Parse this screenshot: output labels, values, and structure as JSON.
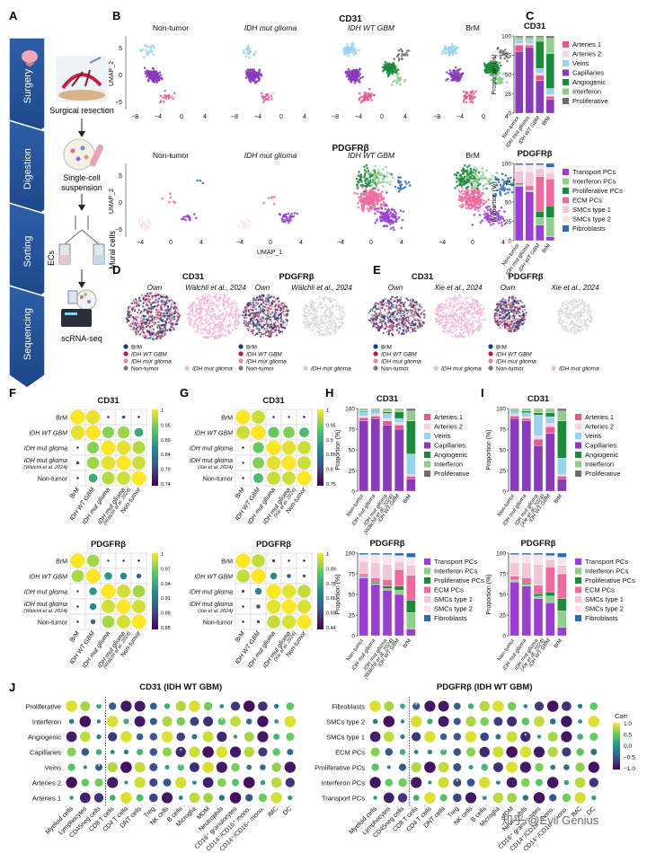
{
  "panels": {
    "A": "A",
    "B": "B",
    "C": "C",
    "D": "D",
    "E": "E",
    "F": "F",
    "G": "G",
    "H": "H",
    "I": "I",
    "J": "J"
  },
  "workflow": {
    "steps": [
      "Surgery",
      "Digestion",
      "Sorting",
      "Sequencing"
    ],
    "captions": [
      "Surgical resection",
      "Single-cell\nsuspension",
      "",
      "scRNA-seq"
    ],
    "sorting_labels": {
      "ecs": "ECs",
      "mural": "Mural cells"
    }
  },
  "umap": {
    "cd31_title": "CD31",
    "pdgfrb_title": "PDGFRβ",
    "groups": [
      "Non-tumor",
      "IDH mut glioma",
      "IDH WT GBM",
      "BrM"
    ],
    "x_label": "UMAP_1",
    "y_label": "UMAP_2",
    "cd31_xticks": [
      "−8",
      "−4",
      "0",
      "4"
    ],
    "cd31_yticks": [
      "5",
      "0",
      "−5"
    ],
    "pdgfrb_xticks": [
      "−4",
      "0",
      "4"
    ],
    "pdgfrb_yticks": [
      "5",
      "0",
      "−5"
    ]
  },
  "legend_C_cd31": [
    "Arteries 1",
    "Arteries 2",
    "Veins",
    "Capillaries",
    "Angiogenic",
    "Interferon",
    "Proliferative"
  ],
  "legend_C_pdgfrb": [
    "Transport PCs",
    "Interferon PCs",
    "Proliferative PCs",
    "ECM PCs",
    "SMCs type 1",
    "SMCs type 2",
    "Fibroblasts"
  ],
  "colors": {
    "Arteries 1": "#e75a8e",
    "Arteries 2": "#fad3e2",
    "Veins": "#9ad3ee",
    "Capillaries": "#8a3bb9",
    "Angiogenic": "#1b8a3b",
    "Interferon": "#8fce8c",
    "Proliferative": "#6e6e6e",
    "Transport PCs": "#9a3fd0",
    "Interferon PCs": "#8fce8c",
    "Proliferative PCs": "#1b8a3b",
    "ECM PCs": "#ee6b9f",
    "SMCs type 1": "#f2c6d6",
    "SMCs type 2": "#fbe4ec",
    "Fibroblasts": "#2b6cb0",
    "BrM": "#1a3a7a",
    "IDH WT GBM": "#b01e4f",
    "IDH mut glioma": "#e887b2",
    "Non-tumor": "#777777"
  },
  "bar_groups_C": [
    "Non-tumor",
    "IDH mut glioma",
    "IDH WT GBM",
    "BrM"
  ],
  "bar_groups_H": [
    "Non-tumor",
    "IDH mut glioma",
    "IDH mut glioma\n(Wälchli et al. 2024)",
    "IDH WT GBM",
    "BrM"
  ],
  "bar_groups_I": [
    "Non-tumor",
    "IDH mut glioma",
    "IDH mut glioma\n(Xie et al. 2024)",
    "IDH WT GBM",
    "BrM"
  ],
  "proportion_label": "Proportion (%)",
  "bar_yticks": [
    "0",
    "25",
    "50",
    "75",
    "100"
  ],
  "chart_data": [
    {
      "type": "bar",
      "title": "CD31",
      "panel": "C",
      "categories": [
        "Non-tumor",
        "IDH mut glioma",
        "IDH WT GBM",
        "BrM"
      ],
      "ylabel": "Proportion (%)",
      "ylim": [
        0,
        100
      ],
      "series": [
        {
          "name": "Capillaries",
          "values": [
            80,
            85,
            42,
            18
          ]
        },
        {
          "name": "Arteries 1",
          "values": [
            8,
            3,
            7,
            4
          ]
        },
        {
          "name": "Arteries 2",
          "values": [
            2,
            2,
            3,
            2
          ]
        },
        {
          "name": "Veins",
          "values": [
            5,
            5,
            6,
            8
          ]
        },
        {
          "name": "Angiogenic",
          "values": [
            0,
            0,
            35,
            45
          ]
        },
        {
          "name": "Interferon",
          "values": [
            3,
            3,
            5,
            20
          ]
        },
        {
          "name": "Proliferative",
          "values": [
            2,
            2,
            2,
            3
          ]
        }
      ]
    },
    {
      "type": "bar",
      "title": "PDGFRβ",
      "panel": "C",
      "categories": [
        "Non-tumor",
        "IDH mut glioma",
        "IDH WT GBM",
        "BrM"
      ],
      "ylabel": "Proportion (%)",
      "ylim": [
        0,
        100
      ],
      "series": [
        {
          "name": "Transport PCs",
          "values": [
            70,
            63,
            20,
            5
          ]
        },
        {
          "name": "Interferon PCs",
          "values": [
            2,
            2,
            10,
            25
          ]
        },
        {
          "name": "Proliferative PCs",
          "values": [
            1,
            1,
            8,
            15
          ]
        },
        {
          "name": "ECM PCs",
          "values": [
            2,
            5,
            45,
            35
          ]
        },
        {
          "name": "SMCs type 1",
          "values": [
            15,
            18,
            10,
            8
          ]
        },
        {
          "name": "SMCs type 2",
          "values": [
            8,
            9,
            5,
            7
          ]
        },
        {
          "name": "Fibroblasts",
          "values": [
            2,
            2,
            2,
            5
          ]
        }
      ]
    },
    {
      "type": "bar",
      "title": "CD31",
      "panel": "H",
      "categories": [
        "Non-tumor",
        "IDH mut glioma",
        "IDH mut glioma (Wälchli et al. 2024)",
        "IDH WT GBM",
        "BrM"
      ],
      "ylabel": "Proportion (%)",
      "ylim": [
        0,
        100
      ],
      "series": [
        {
          "name": "Capillaries",
          "values": [
            85,
            88,
            80,
            75,
            15
          ]
        },
        {
          "name": "Arteries 1",
          "values": [
            4,
            3,
            5,
            5,
            3
          ]
        },
        {
          "name": "Arteries 2",
          "values": [
            2,
            2,
            3,
            3,
            2
          ]
        },
        {
          "name": "Veins",
          "values": [
            5,
            4,
            6,
            5,
            25
          ]
        },
        {
          "name": "Angiogenic",
          "values": [
            1,
            1,
            2,
            8,
            40
          ]
        },
        {
          "name": "Interferon",
          "values": [
            2,
            1,
            3,
            3,
            12
          ]
        },
        {
          "name": "Proliferative",
          "values": [
            1,
            1,
            1,
            1,
            3
          ]
        }
      ]
    },
    {
      "type": "bar",
      "title": "PDGFRβ",
      "panel": "H",
      "categories": [
        "Non-tumor",
        "IDH mut glioma",
        "IDH mut glioma (Wälchli et al. 2024)",
        "IDH WT GBM",
        "BrM"
      ],
      "ylabel": "Proportion (%)",
      "ylim": [
        0,
        100
      ],
      "series": [
        {
          "name": "Transport PCs",
          "values": [
            70,
            62,
            55,
            50,
            8
          ]
        },
        {
          "name": "Interferon PCs",
          "values": [
            1,
            1,
            2,
            5,
            20
          ]
        },
        {
          "name": "Proliferative PCs",
          "values": [
            1,
            2,
            3,
            5,
            15
          ]
        },
        {
          "name": "ECM PCs",
          "values": [
            3,
            5,
            8,
            20,
            30
          ]
        },
        {
          "name": "SMCs type 1",
          "values": [
            15,
            18,
            18,
            10,
            12
          ]
        },
        {
          "name": "SMCs type 2",
          "values": [
            8,
            10,
            12,
            7,
            10
          ]
        },
        {
          "name": "Fibroblasts",
          "values": [
            2,
            2,
            2,
            3,
            5
          ]
        }
      ]
    },
    {
      "type": "bar",
      "title": "CD31",
      "panel": "I",
      "categories": [
        "Non-tumor",
        "IDH mut glioma",
        "IDH mut glioma (Xie et al. 2024)",
        "IDH WT GBM",
        "BrM"
      ],
      "ylabel": "Proportion (%)",
      "ylim": [
        0,
        100
      ],
      "series": [
        {
          "name": "Capillaries",
          "values": [
            88,
            85,
            55,
            70,
            15
          ]
        },
        {
          "name": "Arteries 1",
          "values": [
            3,
            3,
            8,
            8,
            3
          ]
        },
        {
          "name": "Arteries 2",
          "values": [
            2,
            2,
            4,
            4,
            2
          ]
        },
        {
          "name": "Veins",
          "values": [
            4,
            5,
            25,
            8,
            20
          ]
        },
        {
          "name": "Angiogenic",
          "values": [
            1,
            2,
            3,
            5,
            45
          ]
        },
        {
          "name": "Interferon",
          "values": [
            1,
            2,
            4,
            4,
            12
          ]
        },
        {
          "name": "Proliferative",
          "values": [
            1,
            1,
            1,
            1,
            3
          ]
        }
      ]
    },
    {
      "type": "bar",
      "title": "PDGFRβ",
      "panel": "I",
      "categories": [
        "Non-tumor",
        "IDH mut glioma",
        "IDH mut glioma (Xie et al. 2024)",
        "IDH WT GBM",
        "BrM"
      ],
      "ylabel": "Proportion (%)",
      "ylim": [
        0,
        100
      ],
      "series": [
        {
          "name": "Transport PCs",
          "values": [
            65,
            60,
            45,
            40,
            10
          ]
        },
        {
          "name": "Interferon PCs",
          "values": [
            2,
            2,
            3,
            8,
            20
          ]
        },
        {
          "name": "Proliferative PCs",
          "values": [
            1,
            2,
            3,
            5,
            15
          ]
        },
        {
          "name": "ECM PCs",
          "values": [
            4,
            6,
            10,
            30,
            30
          ]
        },
        {
          "name": "SMCs type 1",
          "values": [
            16,
            18,
            25,
            9,
            10
          ]
        },
        {
          "name": "SMCs type 2",
          "values": [
            10,
            10,
            12,
            5,
            10
          ]
        },
        {
          "name": "Fibroblasts",
          "values": [
            2,
            2,
            2,
            3,
            5
          ]
        }
      ]
    }
  ],
  "corr_F_cd31": {
    "title": "CD31",
    "rows": [
      "BrM",
      "IDH WT GBM",
      "IDH mut glioma",
      "IDH mut glioma\n(Wälchli et al. 2024)",
      "Non-tumor"
    ],
    "cbar_ticks": [
      "1",
      "0.95",
      "0.89",
      "0.84",
      "0.79",
      "0.74"
    ]
  },
  "corr_G_cd31": {
    "title": "CD31",
    "rows": [
      "BrM",
      "IDH WT GBM",
      "IDH mut glioma",
      "IDH mut glioma\n(Xie et al. 2024)",
      "Non-tumor"
    ],
    "cbar_ticks": [
      "1",
      "0.95",
      "0.9",
      "0.85",
      "0.8",
      "0.75"
    ]
  },
  "corr_F_pdgfrb": {
    "title": "PDGFRβ",
    "rows": [
      "BrM",
      "IDH WT GBM",
      "IDH mut glioma",
      "IDH mut glioma\n(Wälchli et al. 2024)",
      "Non-tumor"
    ],
    "cbar_ticks": [
      "1",
      "0.97",
      "0.94",
      "0.91",
      "0.88",
      "0.85"
    ]
  },
  "corr_G_pdgfrb": {
    "title": "PDGFRβ",
    "rows": [
      "BrM",
      "IDH WT GBM",
      "IDH mut glioma",
      "IDH mut glioma\n(Xie et al. 2024)",
      "Non-tumor"
    ],
    "cbar_ticks": [
      "1",
      "0.89",
      "0.78",
      "0.66",
      "0.55",
      "0.44"
    ]
  },
  "panelD": {
    "cd31": "CD31",
    "pdgfrb": "PDGFRβ",
    "own": "Own",
    "ref": "Wälchli et al., 2024",
    "ref_label": "IDH mut glioma"
  },
  "panelE": {
    "cd31": "CD31",
    "pdgfrb": "PDGFRβ",
    "own": "Own",
    "ref": "Xie et al., 2024",
    "ref_label": "IDH mut glioma"
  },
  "umap_legend": [
    "BrM",
    "IDH WT GBM",
    "IDH mut glioma",
    "Non-tumor"
  ],
  "J": {
    "left_title": "CD31 (IDH WT GBM)",
    "right_title": "PDGFRβ (IDH WT GBM)",
    "left_rows": [
      "Proliferative",
      "Interferon",
      "Angiogenic",
      "Capillaries",
      "Veins",
      "Arteries 2",
      "Arteries 1"
    ],
    "right_rows": [
      "Fibroblasts",
      "SMCs type 2",
      "SMCs type 1",
      "ECM PCs",
      "Proliferative PCs",
      "Interferon PCs",
      "Transport PCs"
    ],
    "cols": [
      "Myeloid cells",
      "Lymphocytes",
      "CD45neg cells",
      "CD8 T cells",
      "CD4 T cells",
      "DNT cells",
      "Treg",
      "NK cells",
      "B cells",
      "Microglia",
      "MDM",
      "Neutrophils",
      "CD16⁺ granulocytes",
      "CD14⁺/CD16⁺ mono.",
      "CD14⁺/CD16− mono.",
      "IMC",
      "DC"
    ],
    "corr_label": "Corr",
    "corr_ticks": [
      "1.0",
      "0.5",
      "0.0",
      "−0.5",
      "−1.0"
    ],
    "watermark": "知乎 @Evil Genius"
  }
}
